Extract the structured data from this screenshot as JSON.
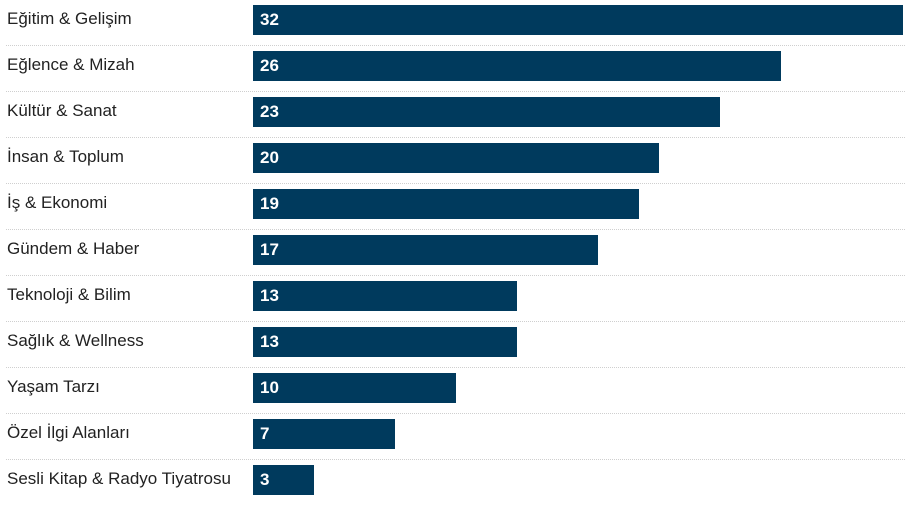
{
  "colors": {
    "bar": "#003a5d",
    "value_text": "#ffffff",
    "label_text": "#222222"
  },
  "chart_data": {
    "type": "bar",
    "orientation": "horizontal",
    "title": "",
    "xlabel": "",
    "ylabel": "",
    "categories": [
      "Eğitim & Gelişim",
      "Eğlence & Mizah",
      "Kültür & Sanat",
      "İnsan & Toplum",
      "İş & Ekonomi",
      "Gündem & Haber",
      "Teknoloji & Bilim",
      "Sağlık & Wellness",
      "Yaşam Tarzı",
      "Özel İlgi Alanları",
      "Sesli Kitap & Radyo Tiyatrosu"
    ],
    "values": [
      32,
      26,
      23,
      20,
      19,
      17,
      13,
      13,
      10,
      7,
      3
    ],
    "xlim": [
      0,
      32
    ],
    "grid": false,
    "legend": "none",
    "data_labels": true
  }
}
